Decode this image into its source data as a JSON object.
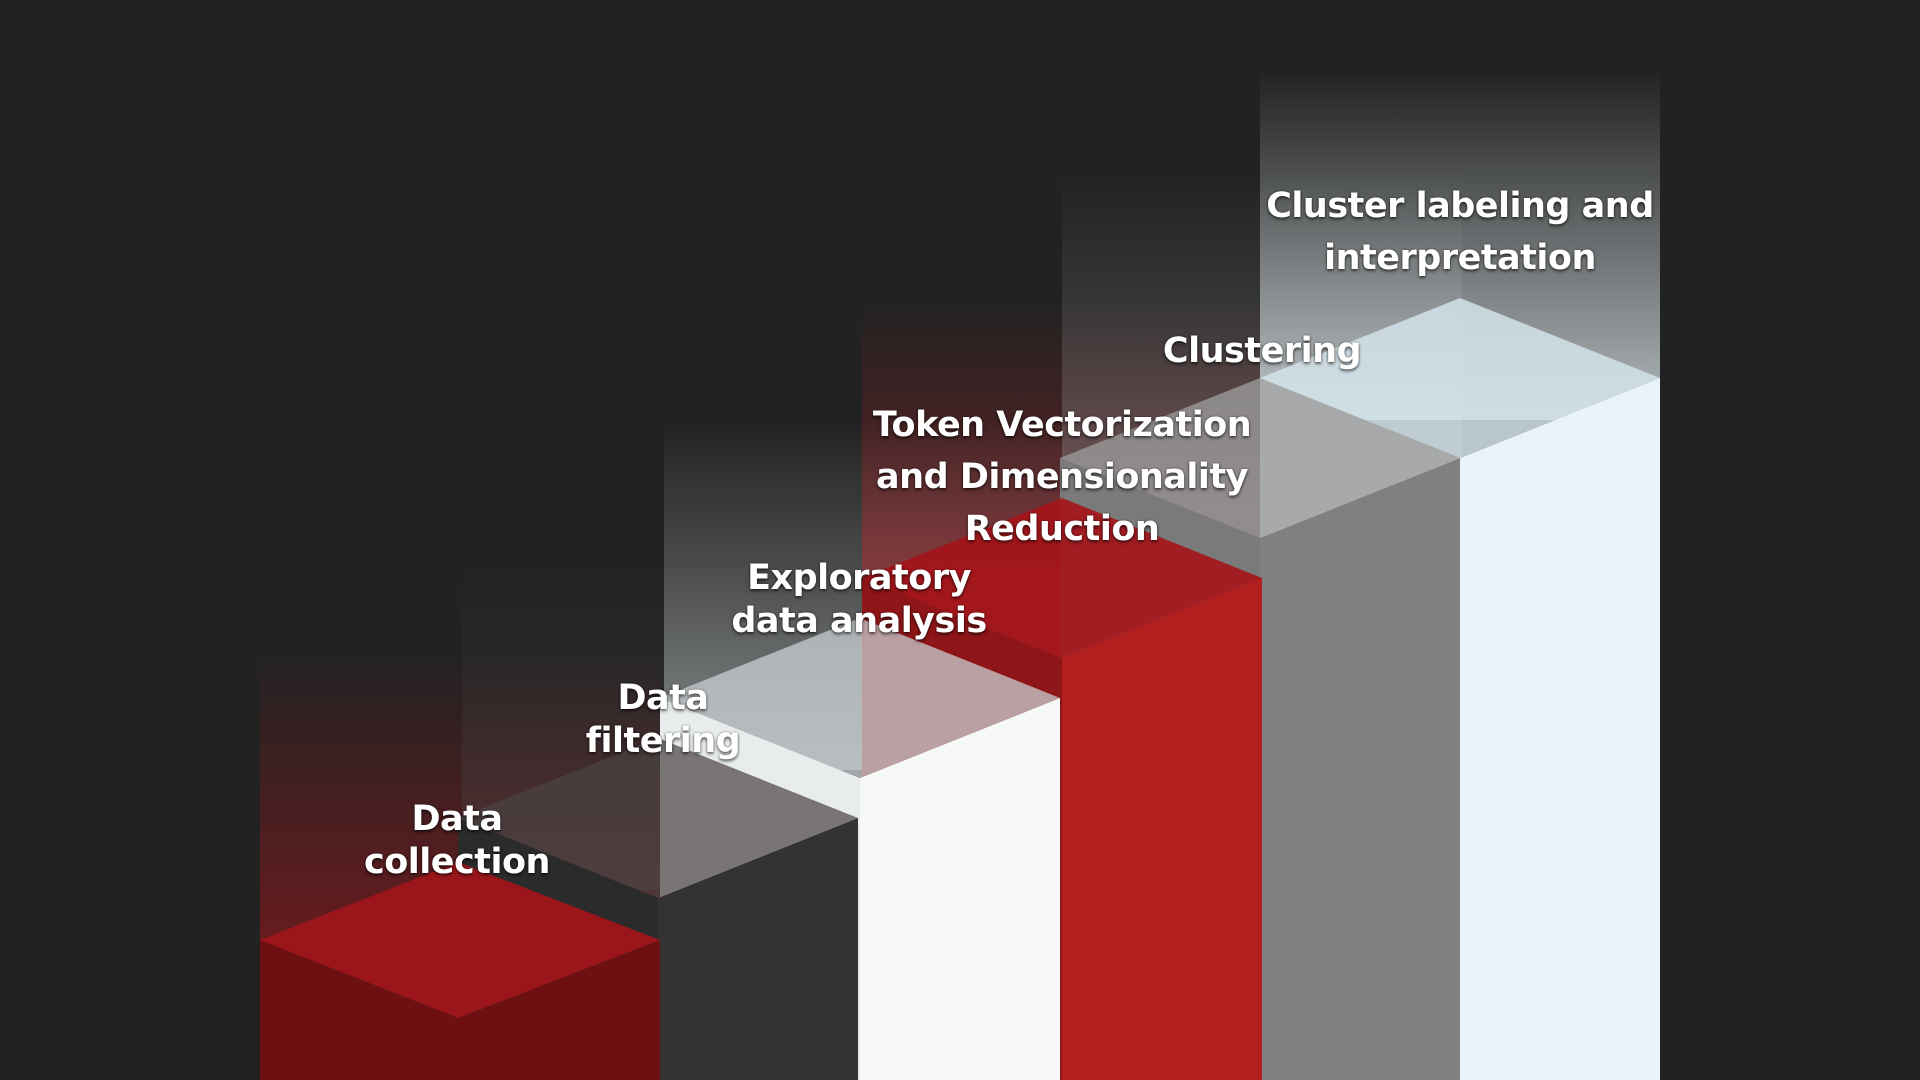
{
  "steps": [
    {
      "id": "data-collection",
      "lines": [
        "Data",
        "collection"
      ],
      "color": "#a3161c"
    },
    {
      "id": "data-filtering",
      "lines": [
        "Data",
        "filtering"
      ],
      "color": "#333333"
    },
    {
      "id": "exploratory-data-analysis",
      "lines": [
        "Exploratory",
        "data analysis"
      ],
      "color": "#f7f9f9"
    },
    {
      "id": "token-vectorization",
      "lines": [
        "Token Vectorization",
        "and Dimensionality",
        "Reduction"
      ],
      "color": "#b31e1e"
    },
    {
      "id": "clustering",
      "lines": [
        "Clustering"
      ],
      "color": "#808080"
    },
    {
      "id": "cluster-labeling",
      "lines": [
        "Cluster labeling and",
        "interpretation"
      ],
      "color": "#eaf3f7"
    }
  ],
  "colors": {
    "background": "#222222",
    "red": "#b31e1e",
    "dark_red": "#6e1012",
    "dark_gray": "#333333",
    "gray": "#808080",
    "white": "#f7f9f9",
    "ice": "#eaf3f7"
  }
}
